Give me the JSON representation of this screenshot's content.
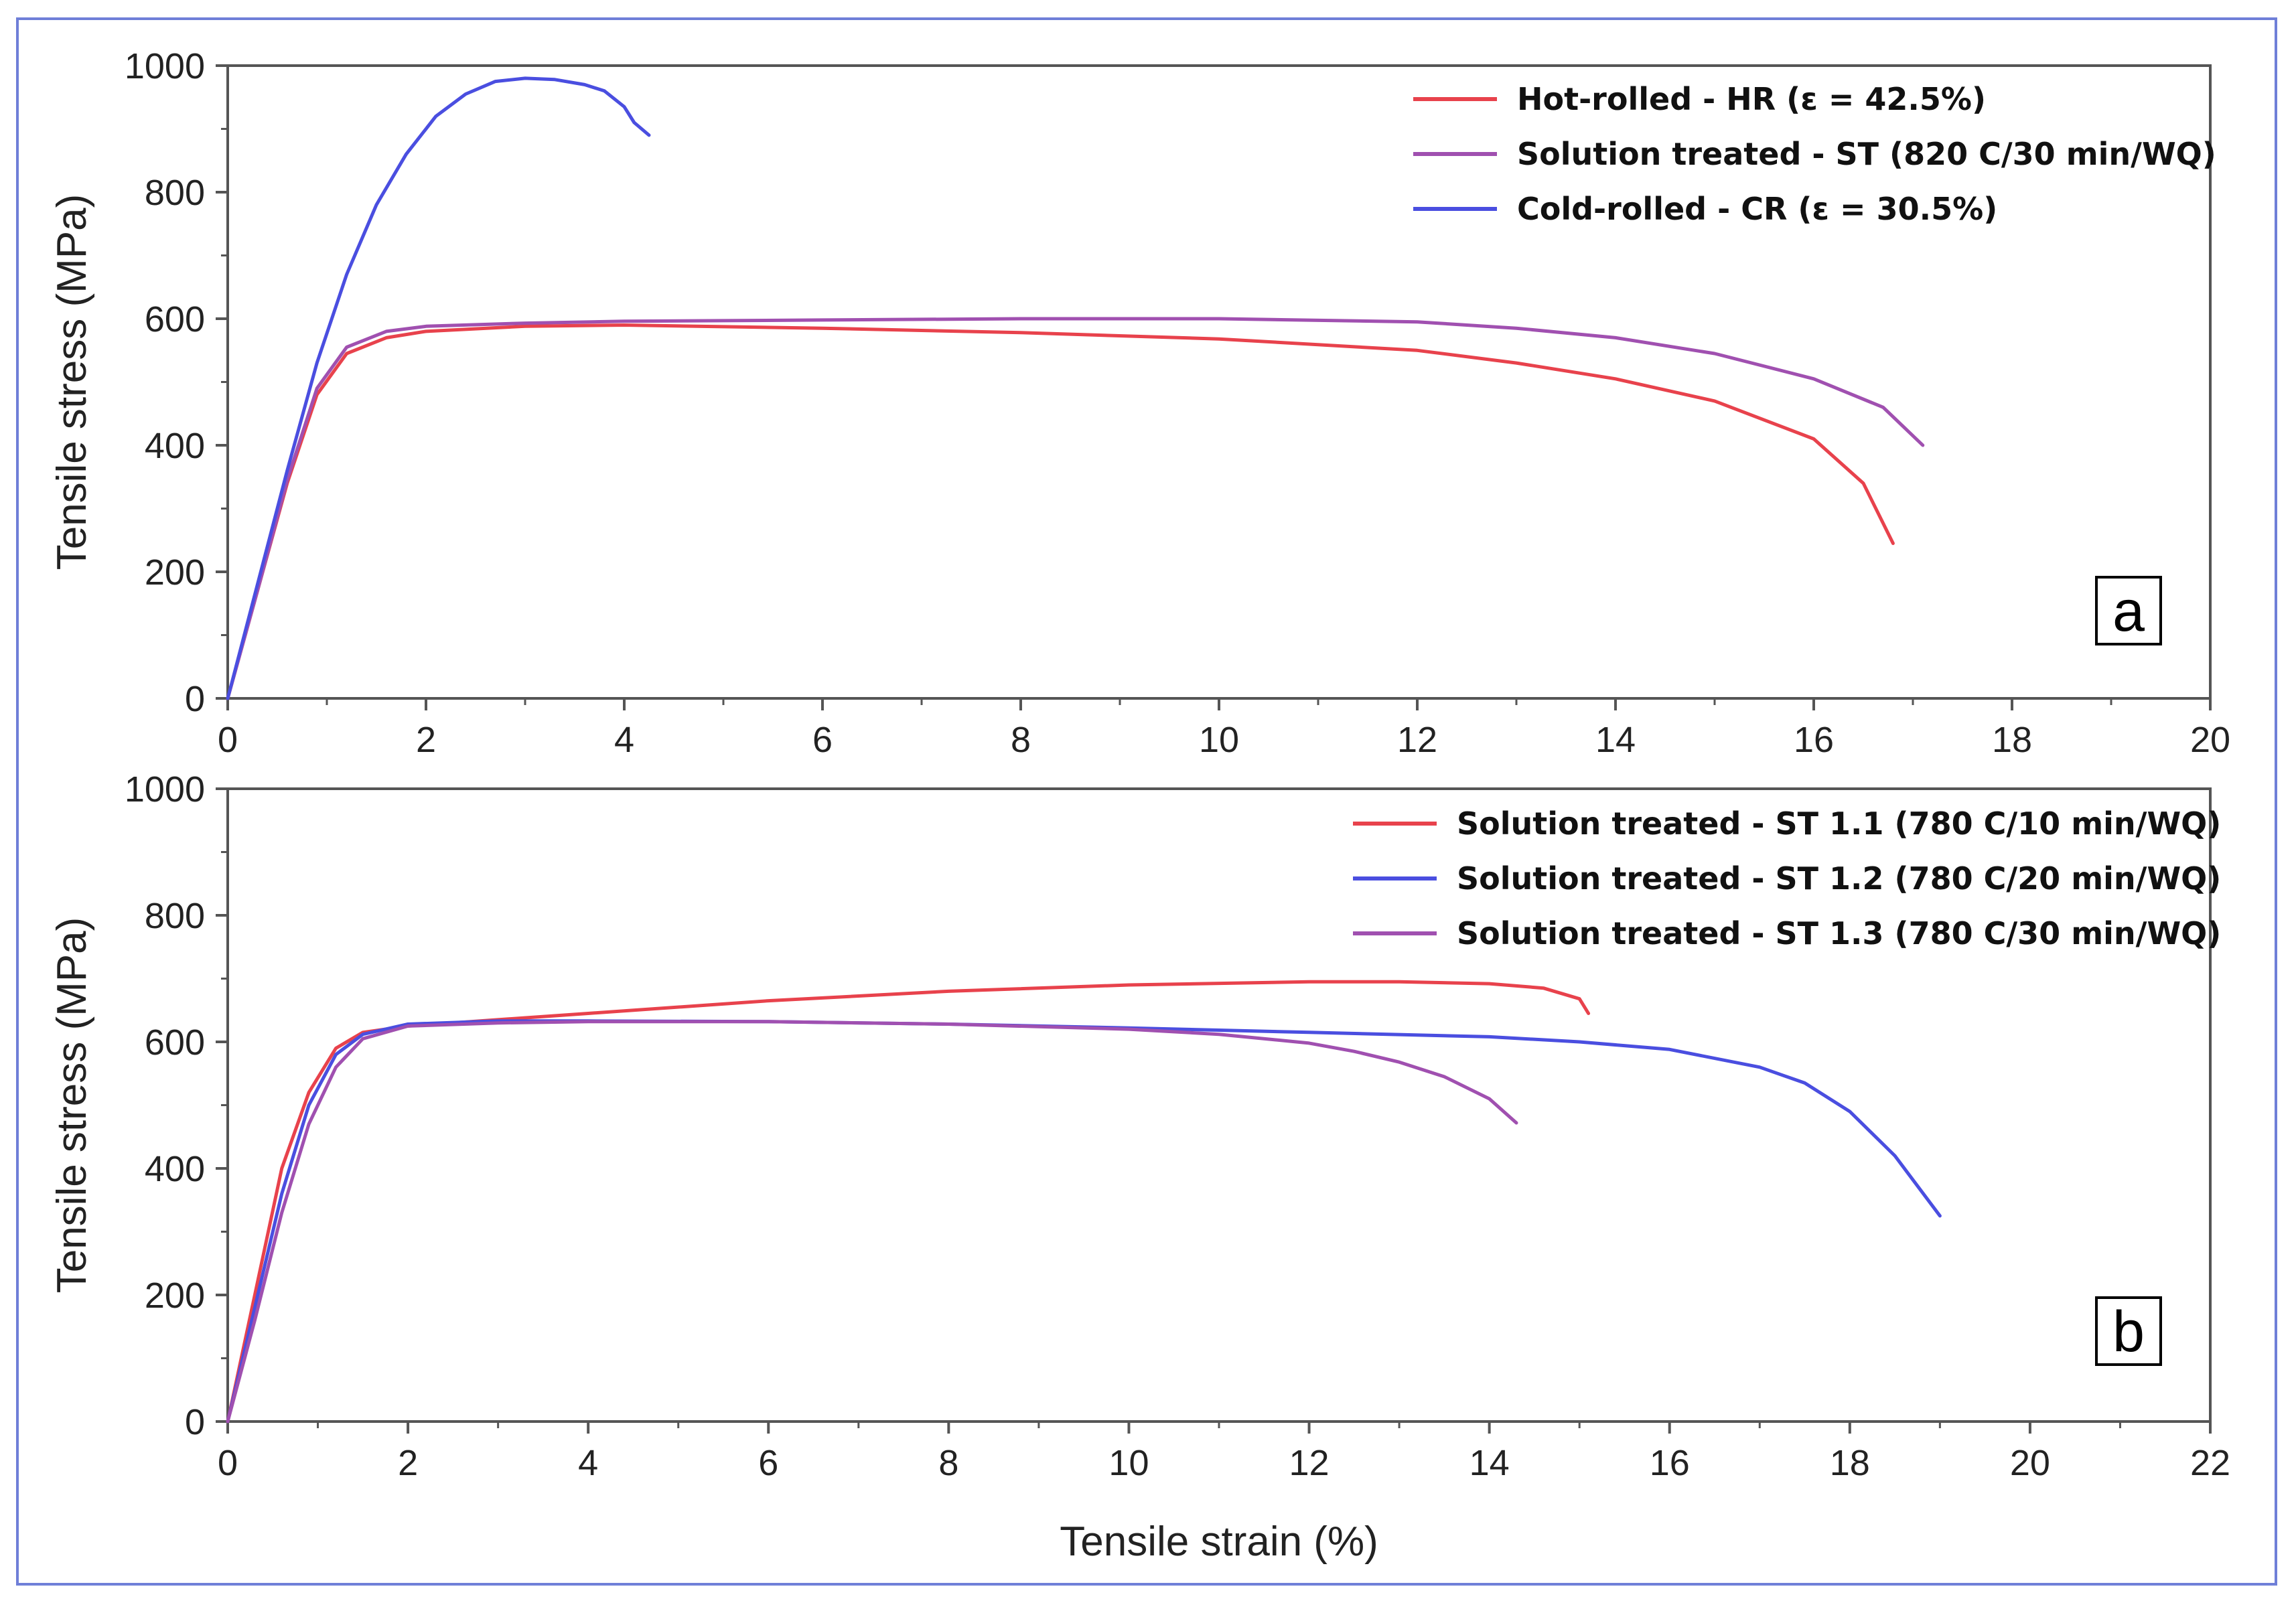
{
  "colors": {
    "red": "#e8424c",
    "purple": "#a050b0",
    "blue": "#4a4ee0",
    "frame": "#6f7fd8",
    "axis": "#555555"
  },
  "chart_data": [
    {
      "type": "line",
      "panel_label": "a",
      "xlabel": "",
      "ylabel": "Tensile stress (MPa)",
      "xlim": [
        0,
        20
      ],
      "ylim": [
        0,
        1000
      ],
      "xticks": [
        "0",
        "2",
        "4",
        "6",
        "8",
        "10",
        "12",
        "14",
        "16",
        "18",
        "20"
      ],
      "yticks": [
        "0",
        "200",
        "400",
        "600",
        "800",
        "1000"
      ],
      "legend_position": "top-right",
      "series": [
        {
          "name": "Hot-rolled - HR (ε = 42.5%)",
          "color": "#e8424c",
          "x": [
            0,
            0.3,
            0.6,
            0.9,
            1.2,
            1.6,
            2,
            3,
            4,
            6,
            8,
            10,
            12,
            13,
            14,
            15,
            16,
            16.5,
            16.8
          ],
          "y": [
            0,
            170,
            340,
            480,
            545,
            570,
            580,
            588,
            590,
            585,
            578,
            568,
            550,
            530,
            505,
            470,
            410,
            340,
            245
          ]
        },
        {
          "name": "Solution treated - ST (820 C/30 min/WQ)",
          "color": "#a050b0",
          "x": [
            0,
            0.3,
            0.6,
            0.9,
            1.2,
            1.6,
            2,
            3,
            4,
            6,
            8,
            10,
            12,
            13,
            14,
            15,
            16,
            16.7,
            17.1
          ],
          "y": [
            0,
            170,
            345,
            490,
            555,
            580,
            588,
            593,
            596,
            598,
            600,
            600,
            595,
            585,
            570,
            545,
            505,
            460,
            400
          ]
        },
        {
          "name": "Cold-rolled - CR (ε = 30.5%)",
          "color": "#4a4ee0",
          "x": [
            0,
            0.3,
            0.6,
            0.9,
            1.2,
            1.5,
            1.8,
            2.1,
            2.4,
            2.7,
            3,
            3.3,
            3.6,
            3.8,
            4,
            4.1,
            4.25
          ],
          "y": [
            0,
            180,
            360,
            530,
            670,
            780,
            860,
            920,
            955,
            975,
            980,
            978,
            970,
            960,
            935,
            910,
            890
          ]
        }
      ]
    },
    {
      "type": "line",
      "panel_label": "b",
      "xlabel": "Tensile strain (%)",
      "ylabel": "Tensile stress (MPa)",
      "xlim": [
        0,
        22
      ],
      "ylim": [
        0,
        1000
      ],
      "xticks": [
        "0",
        "2",
        "4",
        "6",
        "8",
        "10",
        "12",
        "14",
        "16",
        "18",
        "20",
        "22"
      ],
      "yticks": [
        "0",
        "200",
        "400",
        "600",
        "800",
        "1000"
      ],
      "legend_position": "top-right",
      "series": [
        {
          "name": "Solution treated - ST 1.1 (780 C/10 min/WQ)",
          "color": "#e8424c",
          "x": [
            0,
            0.3,
            0.6,
            0.9,
            1.2,
            1.5,
            2,
            3,
            4,
            6,
            8,
            10,
            12,
            13,
            14,
            14.6,
            15,
            15.1
          ],
          "y": [
            0,
            200,
            400,
            520,
            590,
            615,
            625,
            635,
            645,
            665,
            680,
            690,
            695,
            695,
            692,
            685,
            668,
            645
          ]
        },
        {
          "name": "Solution treated - ST 1.2 (780 C/20 min/WQ)",
          "color": "#4a4ee0",
          "x": [
            0,
            0.3,
            0.6,
            0.9,
            1.2,
            1.5,
            2,
            3,
            4,
            6,
            8,
            10,
            12,
            14,
            15,
            16,
            17,
            17.5,
            18,
            18.5,
            19
          ],
          "y": [
            0,
            180,
            360,
            500,
            580,
            612,
            628,
            633,
            633,
            632,
            628,
            622,
            615,
            608,
            600,
            588,
            560,
            535,
            490,
            420,
            325
          ]
        },
        {
          "name": "Solution treated - ST 1.3 (780 C/30 min/WQ)",
          "color": "#a050b0",
          "x": [
            0,
            0.3,
            0.6,
            0.9,
            1.2,
            1.5,
            2,
            3,
            4,
            6,
            8,
            10,
            11,
            12,
            12.5,
            13,
            13.5,
            14,
            14.3
          ],
          "y": [
            0,
            160,
            330,
            470,
            560,
            605,
            625,
            630,
            632,
            632,
            628,
            620,
            612,
            598,
            585,
            568,
            545,
            510,
            472
          ]
        }
      ]
    }
  ]
}
